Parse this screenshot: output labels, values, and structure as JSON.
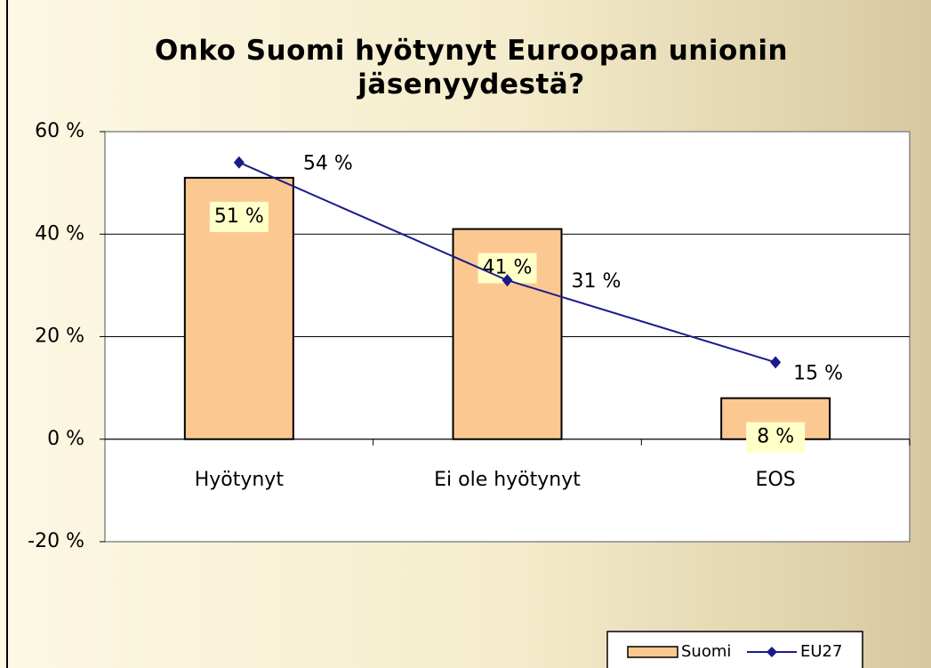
{
  "chart_data": {
    "type": "bar-line",
    "title": "Onko Suomi hyötynyt Euroopan unionin jäsenyydestä?",
    "categories": [
      "Hyötynyt",
      "Ei ole hyötynyt",
      "EOS"
    ],
    "series": [
      {
        "name": "Suomi",
        "type": "bar",
        "color": "#fcc891",
        "values": [
          51,
          41,
          8
        ],
        "value_labels": [
          "51 %",
          "41 %",
          "8 %"
        ]
      },
      {
        "name": "EU27",
        "type": "line",
        "color": "#1a1a8c",
        "values": [
          54,
          31,
          15
        ],
        "value_labels": [
          "54 %",
          "31 %",
          "15 %"
        ]
      }
    ],
    "ylim": [
      -20,
      60
    ],
    "yticks": [
      {
        "value": -20,
        "label": "-20 %"
      },
      {
        "value": 0,
        "label": "0 %"
      },
      {
        "value": 20,
        "label": "20 %"
      },
      {
        "value": 40,
        "label": "40 %"
      },
      {
        "value": 60,
        "label": "60 %"
      }
    ],
    "grid": true,
    "legend": "bottom-right"
  }
}
